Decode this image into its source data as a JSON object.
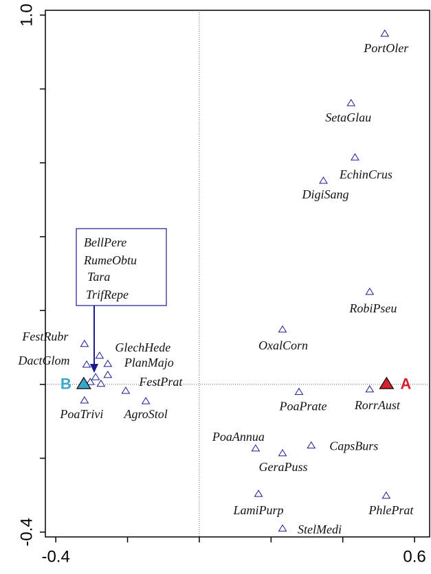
{
  "chart_data": {
    "type": "scatter",
    "xlim": [
      -0.429,
      0.642
    ],
    "ylim": [
      -0.413,
      1.013
    ],
    "xticks": [
      -0.4,
      0.6
    ],
    "xminor": [
      -0.2,
      0,
      0.2,
      0.4
    ],
    "yticks": [
      -0.4,
      {
        "value": 1,
        "label": "1.0"
      }
    ],
    "yminor": [
      -0.2,
      0,
      0.2,
      0.4,
      0.6,
      0.8
    ],
    "zero_lines": true,
    "series": [
      {
        "marker": "open-triangle",
        "color": "#1a1a8c",
        "labels": [
          "PortOler",
          "SetaGlau",
          "EchinCrus",
          "DigiSang",
          "RobiPseu",
          "OxalCorn",
          "PoaPrate",
          "RorrAust",
          "PoaAnnua",
          "CapsBurs",
          "GeraPuss",
          "LamiPurp",
          "PhlePrat",
          "StelMedi",
          "FestRubr",
          "DactGlom",
          "GlechHede",
          "PlanMajo",
          "FestPrat",
          "PoaTrivi",
          "AgroStol"
        ],
        "x": [
          0.517,
          0.423,
          0.434,
          0.346,
          0.475,
          0.232,
          0.278,
          0.475,
          0.157,
          0.312,
          0.232,
          0.165,
          0.521,
          0.232,
          -0.32,
          -0.314,
          -0.278,
          -0.255,
          -0.205,
          -0.32,
          -0.149
        ],
        "y": [
          0.95,
          0.762,
          0.615,
          0.552,
          0.251,
          0.149,
          -0.02,
          -0.013,
          -0.173,
          -0.165,
          -0.186,
          -0.296,
          -0.301,
          -0.39,
          0.11,
          0.054,
          0.078,
          0.056,
          -0.017,
          -0.043,
          -0.045
        ]
      },
      {
        "marker": "open-triangle",
        "color": "#1a1a8c",
        "boxed": true,
        "labels": [
          "BellPere",
          "RumeObtu",
          "Tara",
          "TrifRepe"
        ],
        "x": [
          -0.289,
          -0.274,
          -0.255,
          -0.304
        ],
        "y": [
          0.02,
          0.002,
          0.026,
          0.007
        ]
      },
      {
        "marker": "filled-triangle",
        "colors": [
          "#d8202c",
          "#3aa6c8"
        ],
        "labels": [
          "A",
          "B"
        ],
        "x": [
          0.522,
          -0.322
        ],
        "y": [
          0.002,
          0.002
        ]
      }
    ]
  }
}
